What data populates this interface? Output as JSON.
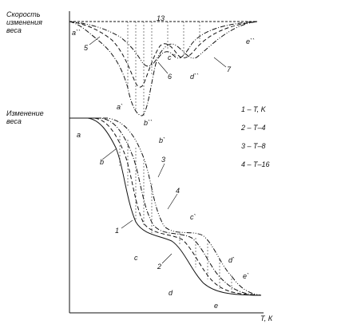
{
  "axis_labels": {
    "rate": [
      "Скорость",
      "изменения",
      "веса"
    ],
    "weight": [
      "Изменение",
      "веса"
    ],
    "x": "Т, К"
  },
  "legend": [
    "1 – T, K",
    "2 – T–4",
    "3 – T–8",
    "4 – T–16"
  ],
  "curve_labels": [
    "a``",
    "13",
    "5",
    "c``",
    "6",
    "d``",
    "7",
    "e``",
    "b``",
    "a`",
    "a",
    "b`",
    "b",
    "3",
    "4",
    "c`",
    "1",
    "c",
    "2",
    "d`",
    "d",
    "e`",
    "e"
  ]
}
